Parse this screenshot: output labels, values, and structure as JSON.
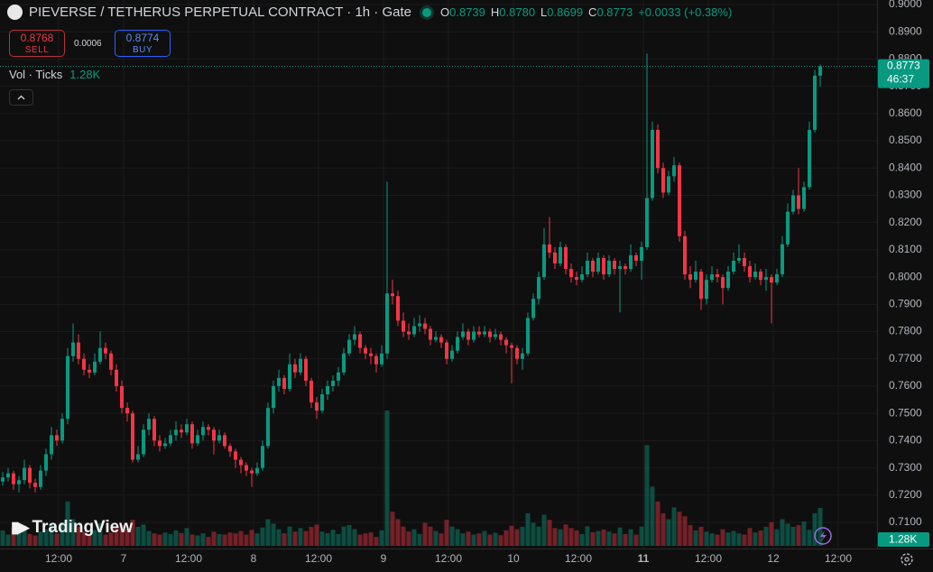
{
  "header": {
    "title": "PIEVERSE / TETHERUS PERPETUAL CONTRACT · 1h · Gate",
    "open_label": "O",
    "open": "0.8739",
    "high_label": "H",
    "high": "0.8780",
    "low_label": "L",
    "low": "0.8699",
    "close_label": "C",
    "close": "0.8773",
    "change": "+0.0033 (+0.38%)"
  },
  "trade": {
    "sell_price": "0.8768",
    "sell_label": "SELL",
    "spread": "0.0006",
    "buy_price": "0.8774",
    "buy_label": "BUY"
  },
  "volume_indicator": {
    "label": "Vol · Ticks",
    "value": "1.28K"
  },
  "logo": "TradingView",
  "chart_data": {
    "type": "candlestick",
    "up_color": "#089981",
    "down_color": "#f23645",
    "grid": true,
    "ylim": [
      0.71,
      0.9
    ],
    "yticks": [
      {
        "value": 0.9,
        "label": "0.9000"
      },
      {
        "value": 0.89,
        "label": "0.8900"
      },
      {
        "value": 0.88,
        "label": "0.8800"
      },
      {
        "value": 0.87,
        "label": "0.8700"
      },
      {
        "value": 0.86,
        "label": "0.8600"
      },
      {
        "value": 0.85,
        "label": "0.8500"
      },
      {
        "value": 0.84,
        "label": "0.8400"
      },
      {
        "value": 0.83,
        "label": "0.8300"
      },
      {
        "value": 0.82,
        "label": "0.8200"
      },
      {
        "value": 0.81,
        "label": "0.8100"
      },
      {
        "value": 0.8,
        "label": "0.8000"
      },
      {
        "value": 0.79,
        "label": "0.7900"
      },
      {
        "value": 0.78,
        "label": "0.7800"
      },
      {
        "value": 0.77,
        "label": "0.7700"
      },
      {
        "value": 0.76,
        "label": "0.7600"
      },
      {
        "value": 0.75,
        "label": "0.7500"
      },
      {
        "value": 0.74,
        "label": "0.7400"
      },
      {
        "value": 0.73,
        "label": "0.7300"
      },
      {
        "value": 0.72,
        "label": "0.7200"
      },
      {
        "value": 0.71,
        "label": "0.7100"
      }
    ],
    "time_labels": [
      "12:00",
      "7",
      "12:00",
      "8",
      "12:00",
      "9",
      "12:00",
      "10",
      "12:00",
      "11",
      "12:00",
      "12",
      "12:00"
    ],
    "countdown": "46:37",
    "volume_label": "1.28K",
    "ohlc": [
      [
        0.725,
        0.7285,
        0.7235,
        0.7265
      ],
      [
        0.7265,
        0.73,
        0.725,
        0.728
      ],
      [
        0.728,
        0.729,
        0.722,
        0.724
      ],
      [
        0.724,
        0.727,
        0.721,
        0.7255
      ],
      [
        0.7255,
        0.733,
        0.724,
        0.73
      ],
      [
        0.73,
        0.731,
        0.7225,
        0.7245
      ],
      [
        0.7245,
        0.726,
        0.721,
        0.723
      ],
      [
        0.723,
        0.731,
        0.722,
        0.729
      ],
      [
        0.729,
        0.737,
        0.727,
        0.735
      ],
      [
        0.735,
        0.745,
        0.733,
        0.742
      ],
      [
        0.742,
        0.744,
        0.738,
        0.74
      ],
      [
        0.74,
        0.75,
        0.739,
        0.748
      ],
      [
        0.748,
        0.774,
        0.746,
        0.771
      ],
      [
        0.771,
        0.783,
        0.769,
        0.776
      ],
      [
        0.776,
        0.779,
        0.768,
        0.77
      ],
      [
        0.77,
        0.772,
        0.764,
        0.766
      ],
      [
        0.766,
        0.768,
        0.763,
        0.765
      ],
      [
        0.765,
        0.772,
        0.764,
        0.769
      ],
      [
        0.769,
        0.78,
        0.768,
        0.774
      ],
      [
        0.774,
        0.776,
        0.77,
        0.772
      ],
      [
        0.772,
        0.773,
        0.764,
        0.766
      ],
      [
        0.766,
        0.768,
        0.758,
        0.76
      ],
      [
        0.76,
        0.762,
        0.75,
        0.752
      ],
      [
        0.752,
        0.754,
        0.747,
        0.75
      ],
      [
        0.75,
        0.751,
        0.732,
        0.733
      ],
      [
        0.733,
        0.738,
        0.732,
        0.735
      ],
      [
        0.735,
        0.746,
        0.734,
        0.744
      ],
      [
        0.744,
        0.75,
        0.742,
        0.748
      ],
      [
        0.748,
        0.749,
        0.738,
        0.74
      ],
      [
        0.74,
        0.742,
        0.736,
        0.738
      ],
      [
        0.738,
        0.741,
        0.737,
        0.739
      ],
      [
        0.739,
        0.744,
        0.738,
        0.742
      ],
      [
        0.742,
        0.747,
        0.74,
        0.744
      ],
      [
        0.744,
        0.746,
        0.741,
        0.743
      ],
      [
        0.743,
        0.748,
        0.742,
        0.746
      ],
      [
        0.746,
        0.747,
        0.737,
        0.739
      ],
      [
        0.739,
        0.744,
        0.738,
        0.742
      ],
      [
        0.742,
        0.747,
        0.74,
        0.745
      ],
      [
        0.745,
        0.746,
        0.742,
        0.744
      ],
      [
        0.744,
        0.745,
        0.735,
        0.74
      ],
      [
        0.74,
        0.744,
        0.739,
        0.742
      ],
      [
        0.742,
        0.743,
        0.737,
        0.738
      ],
      [
        0.738,
        0.739,
        0.734,
        0.736
      ],
      [
        0.736,
        0.737,
        0.73,
        0.733
      ],
      [
        0.733,
        0.734,
        0.728,
        0.731
      ],
      [
        0.731,
        0.732,
        0.727,
        0.729
      ],
      [
        0.729,
        0.73,
        0.723,
        0.728
      ],
      [
        0.728,
        0.732,
        0.727,
        0.73
      ],
      [
        0.73,
        0.74,
        0.729,
        0.738
      ],
      [
        0.738,
        0.754,
        0.737,
        0.752
      ],
      [
        0.752,
        0.762,
        0.75,
        0.76
      ],
      [
        0.76,
        0.766,
        0.758,
        0.763
      ],
      [
        0.763,
        0.764,
        0.757,
        0.759
      ],
      [
        0.759,
        0.772,
        0.758,
        0.768
      ],
      [
        0.768,
        0.77,
        0.763,
        0.765
      ],
      [
        0.765,
        0.772,
        0.764,
        0.77
      ],
      [
        0.77,
        0.771,
        0.76,
        0.762
      ],
      [
        0.762,
        0.763,
        0.752,
        0.754
      ],
      [
        0.754,
        0.756,
        0.748,
        0.751
      ],
      [
        0.751,
        0.759,
        0.75,
        0.757
      ],
      [
        0.757,
        0.762,
        0.755,
        0.76
      ],
      [
        0.76,
        0.764,
        0.758,
        0.762
      ],
      [
        0.762,
        0.767,
        0.76,
        0.765
      ],
      [
        0.765,
        0.774,
        0.764,
        0.772
      ],
      [
        0.772,
        0.779,
        0.771,
        0.777
      ],
      [
        0.777,
        0.782,
        0.775,
        0.779
      ],
      [
        0.779,
        0.78,
        0.772,
        0.774
      ],
      [
        0.774,
        0.775,
        0.77,
        0.772
      ],
      [
        0.772,
        0.774,
        0.768,
        0.771
      ],
      [
        0.771,
        0.772,
        0.765,
        0.768
      ],
      [
        0.768,
        0.775,
        0.767,
        0.772
      ],
      [
        0.772,
        0.835,
        0.77,
        0.794
      ],
      [
        0.794,
        0.799,
        0.79,
        0.793
      ],
      [
        0.793,
        0.795,
        0.782,
        0.784
      ],
      [
        0.784,
        0.787,
        0.778,
        0.78
      ],
      [
        0.78,
        0.783,
        0.777,
        0.779
      ],
      [
        0.779,
        0.785,
        0.778,
        0.782
      ],
      [
        0.782,
        0.786,
        0.78,
        0.783
      ],
      [
        0.783,
        0.785,
        0.779,
        0.781
      ],
      [
        0.781,
        0.782,
        0.775,
        0.777
      ],
      [
        0.777,
        0.78,
        0.776,
        0.778
      ],
      [
        0.778,
        0.779,
        0.774,
        0.776
      ],
      [
        0.776,
        0.777,
        0.768,
        0.77
      ],
      [
        0.77,
        0.775,
        0.769,
        0.773
      ],
      [
        0.773,
        0.78,
        0.772,
        0.778
      ],
      [
        0.778,
        0.783,
        0.777,
        0.78
      ],
      [
        0.78,
        0.781,
        0.775,
        0.777
      ],
      [
        0.777,
        0.782,
        0.776,
        0.78
      ],
      [
        0.78,
        0.782,
        0.778,
        0.779
      ],
      [
        0.779,
        0.782,
        0.778,
        0.78
      ],
      [
        0.78,
        0.781,
        0.776,
        0.778
      ],
      [
        0.778,
        0.781,
        0.777,
        0.779
      ],
      [
        0.779,
        0.78,
        0.775,
        0.777
      ],
      [
        0.777,
        0.778,
        0.772,
        0.775
      ],
      [
        0.775,
        0.776,
        0.761,
        0.774
      ],
      [
        0.774,
        0.775,
        0.768,
        0.77
      ],
      [
        0.77,
        0.774,
        0.766,
        0.772
      ],
      [
        0.772,
        0.787,
        0.771,
        0.785
      ],
      [
        0.785,
        0.794,
        0.784,
        0.792
      ],
      [
        0.792,
        0.802,
        0.79,
        0.8
      ],
      [
        0.8,
        0.818,
        0.799,
        0.812
      ],
      [
        0.812,
        0.822,
        0.807,
        0.809
      ],
      [
        0.809,
        0.811,
        0.803,
        0.805
      ],
      [
        0.805,
        0.813,
        0.804,
        0.811
      ],
      [
        0.811,
        0.812,
        0.801,
        0.803
      ],
      [
        0.803,
        0.805,
        0.798,
        0.8
      ],
      [
        0.8,
        0.802,
        0.797,
        0.799
      ],
      [
        0.799,
        0.804,
        0.798,
        0.801
      ],
      [
        0.801,
        0.809,
        0.8,
        0.806
      ],
      [
        0.806,
        0.807,
        0.8,
        0.802
      ],
      [
        0.802,
        0.809,
        0.801,
        0.807
      ],
      [
        0.807,
        0.808,
        0.799,
        0.801
      ],
      [
        0.801,
        0.808,
        0.8,
        0.806
      ],
      [
        0.806,
        0.807,
        0.801,
        0.803
      ],
      [
        0.803,
        0.806,
        0.787,
        0.804
      ],
      [
        0.804,
        0.805,
        0.801,
        0.803
      ],
      [
        0.803,
        0.812,
        0.802,
        0.808
      ],
      [
        0.808,
        0.809,
        0.804,
        0.806
      ],
      [
        0.806,
        0.813,
        0.799,
        0.811
      ],
      [
        0.811,
        0.882,
        0.81,
        0.829
      ],
      [
        0.829,
        0.857,
        0.828,
        0.854
      ],
      [
        0.854,
        0.856,
        0.838,
        0.84
      ],
      [
        0.84,
        0.842,
        0.829,
        0.831
      ],
      [
        0.831,
        0.839,
        0.83,
        0.837
      ],
      [
        0.837,
        0.844,
        0.835,
        0.841
      ],
      [
        0.841,
        0.842,
        0.813,
        0.815
      ],
      [
        0.815,
        0.817,
        0.799,
        0.801
      ],
      [
        0.801,
        0.804,
        0.796,
        0.799
      ],
      [
        0.799,
        0.806,
        0.798,
        0.802
      ],
      [
        0.802,
        0.803,
        0.788,
        0.792
      ],
      [
        0.792,
        0.801,
        0.79,
        0.799
      ],
      [
        0.799,
        0.804,
        0.798,
        0.801
      ],
      [
        0.801,
        0.803,
        0.798,
        0.8
      ],
      [
        0.8,
        0.801,
        0.79,
        0.796
      ],
      [
        0.796,
        0.804,
        0.795,
        0.802
      ],
      [
        0.802,
        0.809,
        0.801,
        0.806
      ],
      [
        0.806,
        0.812,
        0.805,
        0.807
      ],
      [
        0.807,
        0.809,
        0.802,
        0.804
      ],
      [
        0.804,
        0.806,
        0.798,
        0.8
      ],
      [
        0.8,
        0.805,
        0.799,
        0.802
      ],
      [
        0.802,
        0.803,
        0.797,
        0.799
      ],
      [
        0.799,
        0.803,
        0.795,
        0.8
      ],
      [
        0.8,
        0.801,
        0.783,
        0.798
      ],
      [
        0.798,
        0.803,
        0.797,
        0.801
      ],
      [
        0.801,
        0.815,
        0.8,
        0.812
      ],
      [
        0.812,
        0.827,
        0.811,
        0.824
      ],
      [
        0.824,
        0.832,
        0.823,
        0.83
      ],
      [
        0.83,
        0.84,
        0.823,
        0.825
      ],
      [
        0.825,
        0.835,
        0.824,
        0.833
      ],
      [
        0.833,
        0.857,
        0.832,
        0.854
      ],
      [
        0.854,
        0.876,
        0.853,
        0.8739
      ],
      [
        0.8739,
        0.878,
        0.8699,
        0.8773
      ]
    ],
    "volume": [
      520,
      380,
      610,
      450,
      700,
      400,
      350,
      480,
      560,
      690,
      420,
      800,
      1500,
      900,
      650,
      480,
      420,
      530,
      760,
      380,
      450,
      620,
      700,
      560,
      880,
      640,
      720,
      500,
      420,
      380,
      450,
      400,
      520,
      430,
      600,
      380,
      350,
      420,
      300,
      480,
      400,
      380,
      450,
      420,
      500,
      380,
      540,
      420,
      620,
      900,
      750,
      560,
      420,
      650,
      480,
      600,
      500,
      640,
      720,
      480,
      430,
      540,
      400,
      650,
      700,
      560,
      380,
      420,
      450,
      300,
      520,
      4570,
      1150,
      900,
      650,
      480,
      560,
      400,
      780,
      650,
      500,
      420,
      880,
      650,
      560,
      420,
      480,
      380,
      420,
      500,
      380,
      440,
      360,
      520,
      680,
      560,
      640,
      1100,
      780,
      650,
      1050,
      880,
      600,
      560,
      720,
      600,
      520,
      400,
      660,
      460,
      500,
      550,
      480,
      420,
      620,
      400,
      560,
      380,
      650,
      3400,
      2000,
      1500,
      1100,
      900,
      1300,
      1150,
      1000,
      700,
      520,
      640,
      480,
      420,
      380,
      560,
      450,
      500,
      420,
      380,
      600,
      450,
      520,
      640,
      800,
      560,
      900,
      750,
      640,
      700,
      820,
      540,
      1100,
      1280
    ]
  }
}
